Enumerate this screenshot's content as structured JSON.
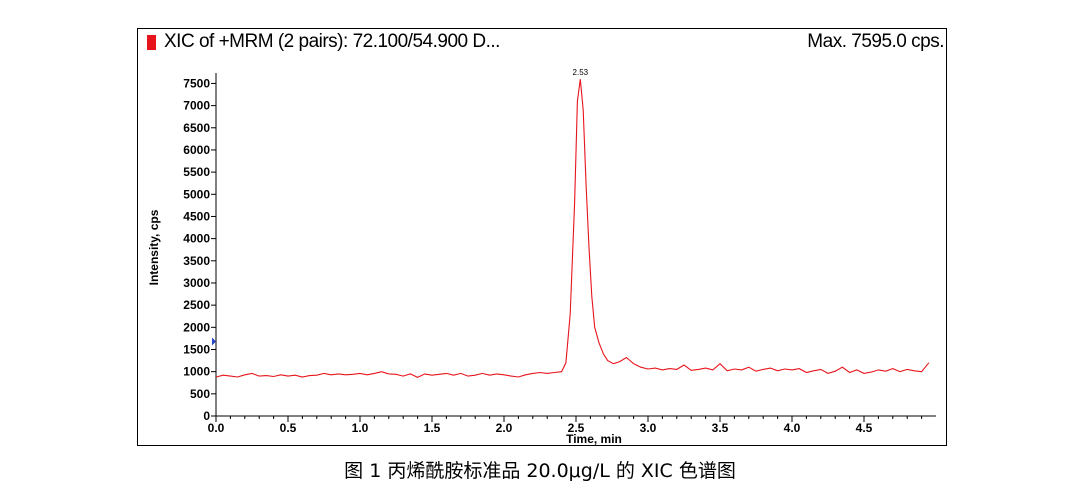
{
  "header": {
    "title": "XIC of +MRM (2 pairs): 72.100/54.900 D...",
    "max_label": "Max. 7595.0 cps.",
    "marker_color": "#e8141b"
  },
  "caption": "图 1  丙烯酰胺标准品 20.0μg/L 的 XIC 色谱图",
  "chart_data": {
    "type": "line",
    "xlabel": "Time, min",
    "ylabel": "Intensity, cps",
    "xlim": [
      0.0,
      5.0
    ],
    "ylim": [
      0,
      7600
    ],
    "x_ticks": [
      "0.0",
      "0.5",
      "1.0",
      "1.5",
      "2.0",
      "2.5",
      "3.0",
      "3.5",
      "4.0",
      "4.5"
    ],
    "y_ticks": [
      "0",
      "500",
      "1000",
      "1500",
      "2000",
      "2500",
      "3000",
      "3500",
      "4000",
      "4500",
      "5000",
      "5500",
      "6000",
      "6500",
      "7000",
      "7500"
    ],
    "peak_annotation": {
      "label": "2.53",
      "x": 2.53,
      "y": 7595
    },
    "line_color": "#e8141b",
    "grid": false,
    "series": [
      {
        "values": [
          [
            0.0,
            880
          ],
          [
            0.05,
            920
          ],
          [
            0.1,
            900
          ],
          [
            0.15,
            880
          ],
          [
            0.2,
            930
          ],
          [
            0.25,
            960
          ],
          [
            0.3,
            900
          ],
          [
            0.35,
            910
          ],
          [
            0.4,
            890
          ],
          [
            0.45,
            930
          ],
          [
            0.5,
            900
          ],
          [
            0.55,
            920
          ],
          [
            0.6,
            880
          ],
          [
            0.65,
            910
          ],
          [
            0.7,
            920
          ],
          [
            0.75,
            960
          ],
          [
            0.8,
            930
          ],
          [
            0.85,
            950
          ],
          [
            0.9,
            930
          ],
          [
            0.95,
            940
          ],
          [
            1.0,
            960
          ],
          [
            1.05,
            930
          ],
          [
            1.1,
            960
          ],
          [
            1.15,
            1000
          ],
          [
            1.2,
            950
          ],
          [
            1.25,
            940
          ],
          [
            1.3,
            900
          ],
          [
            1.35,
            950
          ],
          [
            1.4,
            870
          ],
          [
            1.45,
            950
          ],
          [
            1.5,
            920
          ],
          [
            1.55,
            940
          ],
          [
            1.6,
            960
          ],
          [
            1.65,
            920
          ],
          [
            1.7,
            960
          ],
          [
            1.75,
            900
          ],
          [
            1.8,
            920
          ],
          [
            1.85,
            960
          ],
          [
            1.9,
            920
          ],
          [
            1.95,
            950
          ],
          [
            2.0,
            930
          ],
          [
            2.05,
            900
          ],
          [
            2.1,
            880
          ],
          [
            2.15,
            930
          ],
          [
            2.2,
            960
          ],
          [
            2.25,
            980
          ],
          [
            2.3,
            960
          ],
          [
            2.35,
            980
          ],
          [
            2.4,
            1000
          ],
          [
            2.43,
            1200
          ],
          [
            2.46,
            2300
          ],
          [
            2.49,
            4800
          ],
          [
            2.51,
            7100
          ],
          [
            2.53,
            7595
          ],
          [
            2.55,
            6900
          ],
          [
            2.57,
            5200
          ],
          [
            2.59,
            3800
          ],
          [
            2.61,
            2700
          ],
          [
            2.63,
            2000
          ],
          [
            2.66,
            1650
          ],
          [
            2.69,
            1400
          ],
          [
            2.72,
            1250
          ],
          [
            2.76,
            1180
          ],
          [
            2.8,
            1220
          ],
          [
            2.85,
            1320
          ],
          [
            2.9,
            1180
          ],
          [
            2.95,
            1100
          ],
          [
            3.0,
            1060
          ],
          [
            3.05,
            1080
          ],
          [
            3.1,
            1040
          ],
          [
            3.15,
            1070
          ],
          [
            3.2,
            1050
          ],
          [
            3.25,
            1150
          ],
          [
            3.3,
            1030
          ],
          [
            3.35,
            1050
          ],
          [
            3.4,
            1080
          ],
          [
            3.45,
            1040
          ],
          [
            3.5,
            1180
          ],
          [
            3.55,
            1020
          ],
          [
            3.6,
            1060
          ],
          [
            3.65,
            1040
          ],
          [
            3.7,
            1100
          ],
          [
            3.75,
            1010
          ],
          [
            3.8,
            1050
          ],
          [
            3.85,
            1080
          ],
          [
            3.9,
            1020
          ],
          [
            3.95,
            1060
          ],
          [
            4.0,
            1040
          ],
          [
            4.05,
            1070
          ],
          [
            4.1,
            980
          ],
          [
            4.15,
            1020
          ],
          [
            4.2,
            1050
          ],
          [
            4.25,
            960
          ],
          [
            4.3,
            1010
          ],
          [
            4.35,
            1100
          ],
          [
            4.4,
            980
          ],
          [
            4.45,
            1040
          ],
          [
            4.5,
            960
          ],
          [
            4.55,
            990
          ],
          [
            4.6,
            1040
          ],
          [
            4.65,
            1010
          ],
          [
            4.7,
            1070
          ],
          [
            4.75,
            1000
          ],
          [
            4.8,
            1050
          ],
          [
            4.85,
            1020
          ],
          [
            4.9,
            1000
          ],
          [
            4.95,
            1200
          ]
        ]
      }
    ]
  }
}
